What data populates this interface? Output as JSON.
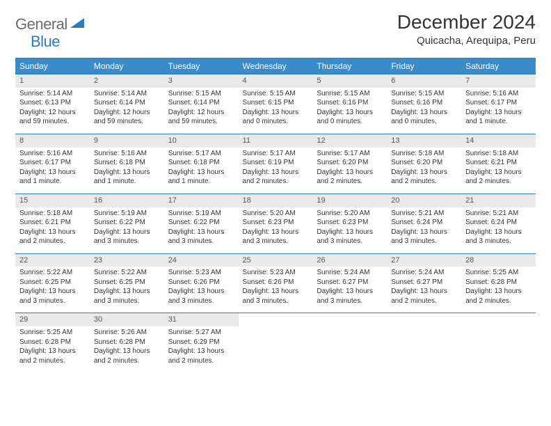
{
  "logo": {
    "text_general": "General",
    "text_blue": "Blue"
  },
  "header": {
    "title": "December 2024",
    "location": "Quicacha, Arequipa, Peru"
  },
  "colors": {
    "header_bg": "#3b8bc8",
    "header_border": "#2b7bbf",
    "daynum_bg": "#eaeaea",
    "text": "#333333",
    "logo_gray": "#6b6b6b",
    "logo_blue": "#2b7bbf"
  },
  "day_headers": [
    "Sunday",
    "Monday",
    "Tuesday",
    "Wednesday",
    "Thursday",
    "Friday",
    "Saturday"
  ],
  "weeks": [
    [
      {
        "d": "1",
        "sr": "Sunrise: 5:14 AM",
        "ss": "Sunset: 6:13 PM",
        "dl": "Daylight: 12 hours and 59 minutes."
      },
      {
        "d": "2",
        "sr": "Sunrise: 5:14 AM",
        "ss": "Sunset: 6:14 PM",
        "dl": "Daylight: 12 hours and 59 minutes."
      },
      {
        "d": "3",
        "sr": "Sunrise: 5:15 AM",
        "ss": "Sunset: 6:14 PM",
        "dl": "Daylight: 12 hours and 59 minutes."
      },
      {
        "d": "4",
        "sr": "Sunrise: 5:15 AM",
        "ss": "Sunset: 6:15 PM",
        "dl": "Daylight: 13 hours and 0 minutes."
      },
      {
        "d": "5",
        "sr": "Sunrise: 5:15 AM",
        "ss": "Sunset: 6:16 PM",
        "dl": "Daylight: 13 hours and 0 minutes."
      },
      {
        "d": "6",
        "sr": "Sunrise: 5:15 AM",
        "ss": "Sunset: 6:16 PM",
        "dl": "Daylight: 13 hours and 0 minutes."
      },
      {
        "d": "7",
        "sr": "Sunrise: 5:16 AM",
        "ss": "Sunset: 6:17 PM",
        "dl": "Daylight: 13 hours and 1 minute."
      }
    ],
    [
      {
        "d": "8",
        "sr": "Sunrise: 5:16 AM",
        "ss": "Sunset: 6:17 PM",
        "dl": "Daylight: 13 hours and 1 minute."
      },
      {
        "d": "9",
        "sr": "Sunrise: 5:16 AM",
        "ss": "Sunset: 6:18 PM",
        "dl": "Daylight: 13 hours and 1 minute."
      },
      {
        "d": "10",
        "sr": "Sunrise: 5:17 AM",
        "ss": "Sunset: 6:18 PM",
        "dl": "Daylight: 13 hours and 1 minute."
      },
      {
        "d": "11",
        "sr": "Sunrise: 5:17 AM",
        "ss": "Sunset: 6:19 PM",
        "dl": "Daylight: 13 hours and 2 minutes."
      },
      {
        "d": "12",
        "sr": "Sunrise: 5:17 AM",
        "ss": "Sunset: 6:20 PM",
        "dl": "Daylight: 13 hours and 2 minutes."
      },
      {
        "d": "13",
        "sr": "Sunrise: 5:18 AM",
        "ss": "Sunset: 6:20 PM",
        "dl": "Daylight: 13 hours and 2 minutes."
      },
      {
        "d": "14",
        "sr": "Sunrise: 5:18 AM",
        "ss": "Sunset: 6:21 PM",
        "dl": "Daylight: 13 hours and 2 minutes."
      }
    ],
    [
      {
        "d": "15",
        "sr": "Sunrise: 5:18 AM",
        "ss": "Sunset: 6:21 PM",
        "dl": "Daylight: 13 hours and 2 minutes."
      },
      {
        "d": "16",
        "sr": "Sunrise: 5:19 AM",
        "ss": "Sunset: 6:22 PM",
        "dl": "Daylight: 13 hours and 3 minutes."
      },
      {
        "d": "17",
        "sr": "Sunrise: 5:19 AM",
        "ss": "Sunset: 6:22 PM",
        "dl": "Daylight: 13 hours and 3 minutes."
      },
      {
        "d": "18",
        "sr": "Sunrise: 5:20 AM",
        "ss": "Sunset: 6:23 PM",
        "dl": "Daylight: 13 hours and 3 minutes."
      },
      {
        "d": "19",
        "sr": "Sunrise: 5:20 AM",
        "ss": "Sunset: 6:23 PM",
        "dl": "Daylight: 13 hours and 3 minutes."
      },
      {
        "d": "20",
        "sr": "Sunrise: 5:21 AM",
        "ss": "Sunset: 6:24 PM",
        "dl": "Daylight: 13 hours and 3 minutes."
      },
      {
        "d": "21",
        "sr": "Sunrise: 5:21 AM",
        "ss": "Sunset: 6:24 PM",
        "dl": "Daylight: 13 hours and 3 minutes."
      }
    ],
    [
      {
        "d": "22",
        "sr": "Sunrise: 5:22 AM",
        "ss": "Sunset: 6:25 PM",
        "dl": "Daylight: 13 hours and 3 minutes."
      },
      {
        "d": "23",
        "sr": "Sunrise: 5:22 AM",
        "ss": "Sunset: 6:25 PM",
        "dl": "Daylight: 13 hours and 3 minutes."
      },
      {
        "d": "24",
        "sr": "Sunrise: 5:23 AM",
        "ss": "Sunset: 6:26 PM",
        "dl": "Daylight: 13 hours and 3 minutes."
      },
      {
        "d": "25",
        "sr": "Sunrise: 5:23 AM",
        "ss": "Sunset: 6:26 PM",
        "dl": "Daylight: 13 hours and 3 minutes."
      },
      {
        "d": "26",
        "sr": "Sunrise: 5:24 AM",
        "ss": "Sunset: 6:27 PM",
        "dl": "Daylight: 13 hours and 3 minutes."
      },
      {
        "d": "27",
        "sr": "Sunrise: 5:24 AM",
        "ss": "Sunset: 6:27 PM",
        "dl": "Daylight: 13 hours and 2 minutes."
      },
      {
        "d": "28",
        "sr": "Sunrise: 5:25 AM",
        "ss": "Sunset: 6:28 PM",
        "dl": "Daylight: 13 hours and 2 minutes."
      }
    ],
    [
      {
        "d": "29",
        "sr": "Sunrise: 5:25 AM",
        "ss": "Sunset: 6:28 PM",
        "dl": "Daylight: 13 hours and 2 minutes."
      },
      {
        "d": "30",
        "sr": "Sunrise: 5:26 AM",
        "ss": "Sunset: 6:28 PM",
        "dl": "Daylight: 13 hours and 2 minutes."
      },
      {
        "d": "31",
        "sr": "Sunrise: 5:27 AM",
        "ss": "Sunset: 6:29 PM",
        "dl": "Daylight: 13 hours and 2 minutes."
      },
      null,
      null,
      null,
      null
    ]
  ]
}
